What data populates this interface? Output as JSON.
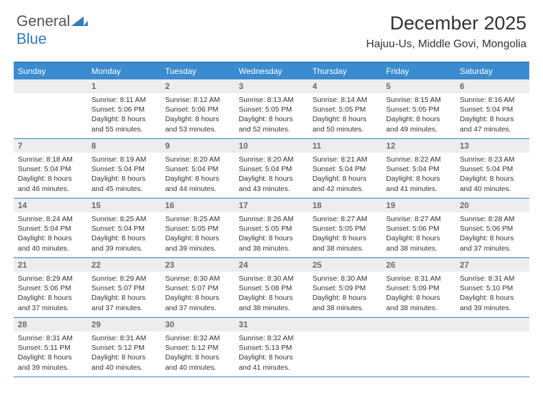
{
  "brand": {
    "general": "General",
    "blue": "Blue"
  },
  "title": "December 2025",
  "location": "Hajuu-Us, Middle Govi, Mongolia",
  "colors": {
    "header_bar": "#3a8bd0",
    "week_divider": "#2f7bbf",
    "daynum_bg": "#ededed",
    "daynum_fg": "#6a6a6a",
    "text": "#333333"
  },
  "dow": [
    "Sunday",
    "Monday",
    "Tuesday",
    "Wednesday",
    "Thursday",
    "Friday",
    "Saturday"
  ],
  "weeks": [
    [
      {
        "n": "",
        "sunrise": "",
        "sunset": "",
        "daylight": ""
      },
      {
        "n": "1",
        "sunrise": "Sunrise: 8:11 AM",
        "sunset": "Sunset: 5:06 PM",
        "daylight": "Daylight: 8 hours and 55 minutes."
      },
      {
        "n": "2",
        "sunrise": "Sunrise: 8:12 AM",
        "sunset": "Sunset: 5:06 PM",
        "daylight": "Daylight: 8 hours and 53 minutes."
      },
      {
        "n": "3",
        "sunrise": "Sunrise: 8:13 AM",
        "sunset": "Sunset: 5:05 PM",
        "daylight": "Daylight: 8 hours and 52 minutes."
      },
      {
        "n": "4",
        "sunrise": "Sunrise: 8:14 AM",
        "sunset": "Sunset: 5:05 PM",
        "daylight": "Daylight: 8 hours and 50 minutes."
      },
      {
        "n": "5",
        "sunrise": "Sunrise: 8:15 AM",
        "sunset": "Sunset: 5:05 PM",
        "daylight": "Daylight: 8 hours and 49 minutes."
      },
      {
        "n": "6",
        "sunrise": "Sunrise: 8:16 AM",
        "sunset": "Sunset: 5:04 PM",
        "daylight": "Daylight: 8 hours and 47 minutes."
      }
    ],
    [
      {
        "n": "7",
        "sunrise": "Sunrise: 8:18 AM",
        "sunset": "Sunset: 5:04 PM",
        "daylight": "Daylight: 8 hours and 46 minutes."
      },
      {
        "n": "8",
        "sunrise": "Sunrise: 8:19 AM",
        "sunset": "Sunset: 5:04 PM",
        "daylight": "Daylight: 8 hours and 45 minutes."
      },
      {
        "n": "9",
        "sunrise": "Sunrise: 8:20 AM",
        "sunset": "Sunset: 5:04 PM",
        "daylight": "Daylight: 8 hours and 44 minutes."
      },
      {
        "n": "10",
        "sunrise": "Sunrise: 8:20 AM",
        "sunset": "Sunset: 5:04 PM",
        "daylight": "Daylight: 8 hours and 43 minutes."
      },
      {
        "n": "11",
        "sunrise": "Sunrise: 8:21 AM",
        "sunset": "Sunset: 5:04 PM",
        "daylight": "Daylight: 8 hours and 42 minutes."
      },
      {
        "n": "12",
        "sunrise": "Sunrise: 8:22 AM",
        "sunset": "Sunset: 5:04 PM",
        "daylight": "Daylight: 8 hours and 41 minutes."
      },
      {
        "n": "13",
        "sunrise": "Sunrise: 8:23 AM",
        "sunset": "Sunset: 5:04 PM",
        "daylight": "Daylight: 8 hours and 40 minutes."
      }
    ],
    [
      {
        "n": "14",
        "sunrise": "Sunrise: 8:24 AM",
        "sunset": "Sunset: 5:04 PM",
        "daylight": "Daylight: 8 hours and 40 minutes."
      },
      {
        "n": "15",
        "sunrise": "Sunrise: 8:25 AM",
        "sunset": "Sunset: 5:04 PM",
        "daylight": "Daylight: 8 hours and 39 minutes."
      },
      {
        "n": "16",
        "sunrise": "Sunrise: 8:25 AM",
        "sunset": "Sunset: 5:05 PM",
        "daylight": "Daylight: 8 hours and 39 minutes."
      },
      {
        "n": "17",
        "sunrise": "Sunrise: 8:26 AM",
        "sunset": "Sunset: 5:05 PM",
        "daylight": "Daylight: 8 hours and 38 minutes."
      },
      {
        "n": "18",
        "sunrise": "Sunrise: 8:27 AM",
        "sunset": "Sunset: 5:05 PM",
        "daylight": "Daylight: 8 hours and 38 minutes."
      },
      {
        "n": "19",
        "sunrise": "Sunrise: 8:27 AM",
        "sunset": "Sunset: 5:06 PM",
        "daylight": "Daylight: 8 hours and 38 minutes."
      },
      {
        "n": "20",
        "sunrise": "Sunrise: 8:28 AM",
        "sunset": "Sunset: 5:06 PM",
        "daylight": "Daylight: 8 hours and 37 minutes."
      }
    ],
    [
      {
        "n": "21",
        "sunrise": "Sunrise: 8:29 AM",
        "sunset": "Sunset: 5:06 PM",
        "daylight": "Daylight: 8 hours and 37 minutes."
      },
      {
        "n": "22",
        "sunrise": "Sunrise: 8:29 AM",
        "sunset": "Sunset: 5:07 PM",
        "daylight": "Daylight: 8 hours and 37 minutes."
      },
      {
        "n": "23",
        "sunrise": "Sunrise: 8:30 AM",
        "sunset": "Sunset: 5:07 PM",
        "daylight": "Daylight: 8 hours and 37 minutes."
      },
      {
        "n": "24",
        "sunrise": "Sunrise: 8:30 AM",
        "sunset": "Sunset: 5:08 PM",
        "daylight": "Daylight: 8 hours and 38 minutes."
      },
      {
        "n": "25",
        "sunrise": "Sunrise: 8:30 AM",
        "sunset": "Sunset: 5:09 PM",
        "daylight": "Daylight: 8 hours and 38 minutes."
      },
      {
        "n": "26",
        "sunrise": "Sunrise: 8:31 AM",
        "sunset": "Sunset: 5:09 PM",
        "daylight": "Daylight: 8 hours and 38 minutes."
      },
      {
        "n": "27",
        "sunrise": "Sunrise: 8:31 AM",
        "sunset": "Sunset: 5:10 PM",
        "daylight": "Daylight: 8 hours and 39 minutes."
      }
    ],
    [
      {
        "n": "28",
        "sunrise": "Sunrise: 8:31 AM",
        "sunset": "Sunset: 5:11 PM",
        "daylight": "Daylight: 8 hours and 39 minutes."
      },
      {
        "n": "29",
        "sunrise": "Sunrise: 8:31 AM",
        "sunset": "Sunset: 5:12 PM",
        "daylight": "Daylight: 8 hours and 40 minutes."
      },
      {
        "n": "30",
        "sunrise": "Sunrise: 8:32 AM",
        "sunset": "Sunset: 5:12 PM",
        "daylight": "Daylight: 8 hours and 40 minutes."
      },
      {
        "n": "31",
        "sunrise": "Sunrise: 8:32 AM",
        "sunset": "Sunset: 5:13 PM",
        "daylight": "Daylight: 8 hours and 41 minutes."
      },
      {
        "n": "",
        "sunrise": "",
        "sunset": "",
        "daylight": ""
      },
      {
        "n": "",
        "sunrise": "",
        "sunset": "",
        "daylight": ""
      },
      {
        "n": "",
        "sunrise": "",
        "sunset": "",
        "daylight": ""
      }
    ]
  ]
}
